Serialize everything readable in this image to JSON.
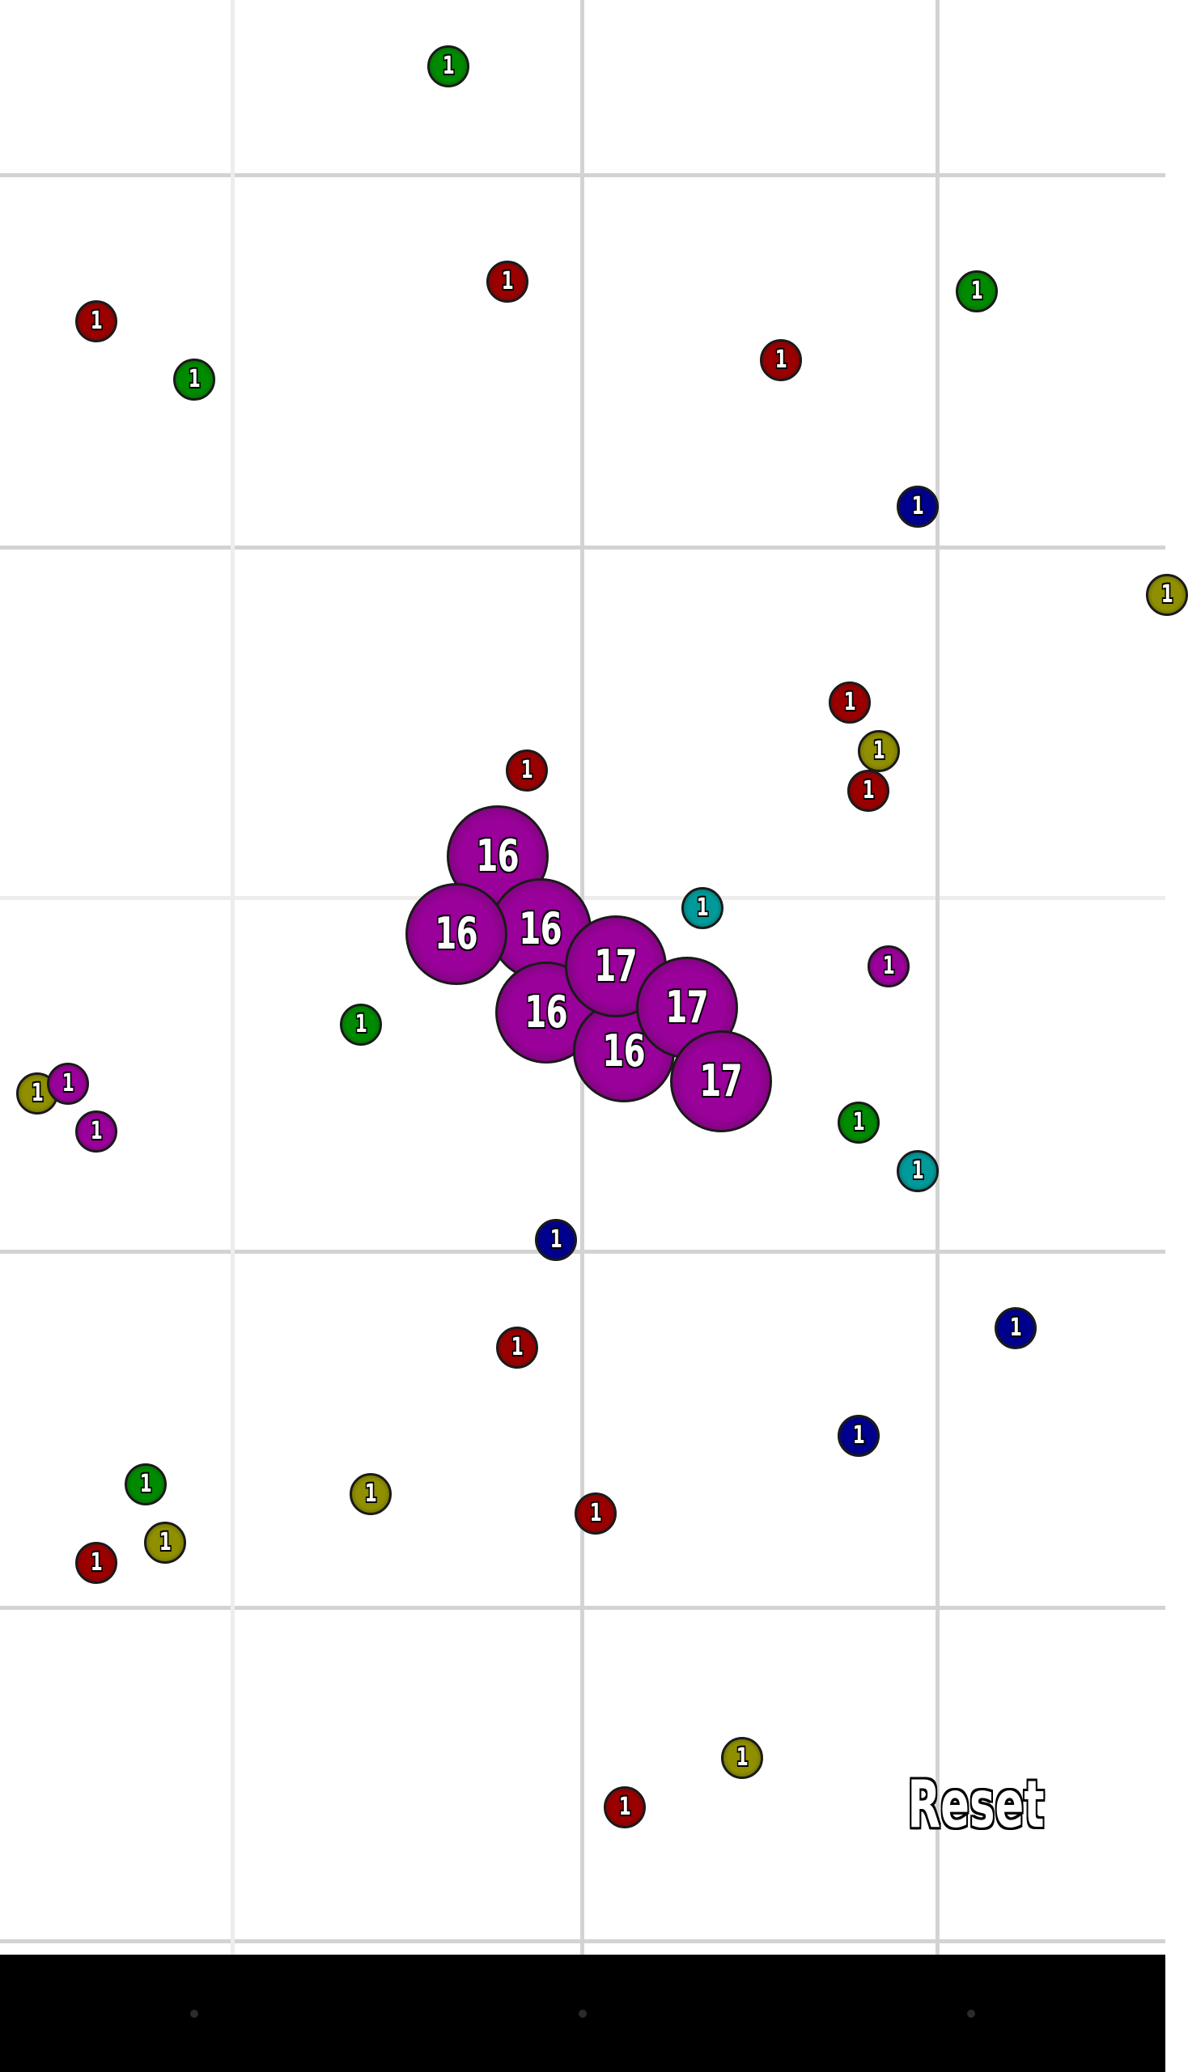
{
  "colors": {
    "red": "#9a0000",
    "green": "#008a00",
    "blue": "#00008f",
    "olive": "#8f8f00",
    "teal": "#009a9a",
    "purple": "#9a009a",
    "background": "#ffffff",
    "grid": "#d3d3d3",
    "navbar": "#000000"
  },
  "blobs": [
    {
      "id": "green-1",
      "color": "green",
      "label": "1"
    },
    {
      "id": "red-1",
      "color": "red",
      "label": "1"
    },
    {
      "id": "red-2",
      "color": "red",
      "label": "1"
    },
    {
      "id": "green-2",
      "color": "green",
      "label": "1"
    },
    {
      "id": "green-3",
      "color": "green",
      "label": "1"
    },
    {
      "id": "red-3",
      "color": "red",
      "label": "1"
    },
    {
      "id": "blue-1",
      "color": "blue",
      "label": "1"
    },
    {
      "id": "olive-1",
      "color": "olive",
      "label": "1"
    },
    {
      "id": "red-4",
      "color": "red",
      "label": "1"
    },
    {
      "id": "olive-2",
      "color": "olive",
      "label": "1"
    },
    {
      "id": "red-5",
      "color": "red",
      "label": "1"
    },
    {
      "id": "red-6",
      "color": "red",
      "label": "1"
    },
    {
      "id": "teal-1",
      "color": "teal",
      "label": "1"
    },
    {
      "id": "purple-1",
      "color": "purple",
      "label": "1"
    },
    {
      "id": "green-4",
      "color": "green",
      "label": "1"
    },
    {
      "id": "olive-3",
      "color": "olive",
      "label": "1"
    },
    {
      "id": "purple-2",
      "color": "purple",
      "label": "1"
    },
    {
      "id": "purple-3",
      "color": "purple",
      "label": "1"
    },
    {
      "id": "green-5",
      "color": "green",
      "label": "1"
    },
    {
      "id": "teal-2",
      "color": "teal",
      "label": "1"
    },
    {
      "id": "blue-2",
      "color": "blue",
      "label": "1"
    },
    {
      "id": "blue-3",
      "color": "blue",
      "label": "1"
    },
    {
      "id": "red-7",
      "color": "red",
      "label": "1"
    },
    {
      "id": "blue-4",
      "color": "blue",
      "label": "1"
    },
    {
      "id": "green-6",
      "color": "green",
      "label": "1"
    },
    {
      "id": "olive-4",
      "color": "olive",
      "label": "1"
    },
    {
      "id": "red-8",
      "color": "red",
      "label": "1"
    },
    {
      "id": "olive-5",
      "color": "olive",
      "label": "1"
    },
    {
      "id": "red-9",
      "color": "red",
      "label": "1"
    },
    {
      "id": "olive-6",
      "color": "olive",
      "label": "1"
    },
    {
      "id": "red-10",
      "color": "red",
      "label": "1"
    },
    {
      "id": "big-purple-1",
      "color": "purple",
      "label": "16"
    },
    {
      "id": "big-purple-2",
      "color": "purple",
      "label": "16"
    },
    {
      "id": "big-purple-3",
      "color": "purple",
      "label": "16"
    },
    {
      "id": "big-purple-4",
      "color": "purple",
      "label": "16"
    },
    {
      "id": "big-purple-5",
      "color": "purple",
      "label": "16"
    },
    {
      "id": "big-purple-6",
      "color": "purple",
      "label": "17"
    },
    {
      "id": "big-purple-7",
      "color": "purple",
      "label": "17"
    },
    {
      "id": "big-purple-8",
      "color": "purple",
      "label": "17"
    }
  ],
  "reset_label": "Reset"
}
